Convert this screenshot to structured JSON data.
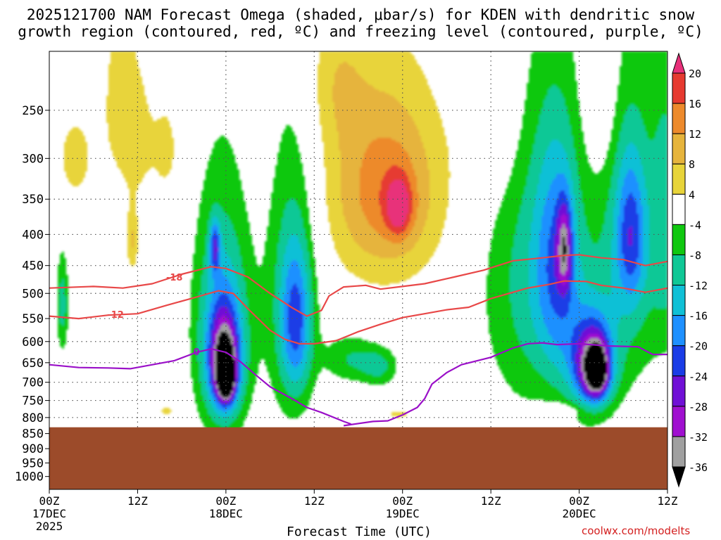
{
  "chart_data": {
    "type": "heatmap",
    "title_line1": "2025121700 NAM Forecast Omega (shaded, μbar/s) for KDEN with dendritic snow",
    "title_line2": "growth region (contoured, red, ºC) and freezing level (contoured, purple, ºC)",
    "xlabel": "Forecast Time (UTC)",
    "credit": "coolwx.com/modelts",
    "x_hours_range": [
      0,
      84
    ],
    "x_ticks": [
      {
        "hour": 0,
        "label": "00Z",
        "sub": "17DEC",
        "sub2": "2025"
      },
      {
        "hour": 12,
        "label": "12Z",
        "sub": "",
        "sub2": ""
      },
      {
        "hour": 24,
        "label": "00Z",
        "sub": "18DEC",
        "sub2": ""
      },
      {
        "hour": 36,
        "label": "12Z",
        "sub": "",
        "sub2": ""
      },
      {
        "hour": 48,
        "label": "00Z",
        "sub": "19DEC",
        "sub2": ""
      },
      {
        "hour": 60,
        "label": "12Z",
        "sub": "",
        "sub2": ""
      },
      {
        "hour": 72,
        "label": "00Z",
        "sub": "20DEC",
        "sub2": ""
      },
      {
        "hour": 84,
        "label": "12Z",
        "sub": "",
        "sub2": ""
      }
    ],
    "y_ticks_hpa": [
      250,
      300,
      350,
      400,
      450,
      500,
      550,
      600,
      650,
      700,
      750,
      800,
      850,
      900,
      950,
      1000
    ],
    "y_range_hpa": [
      200,
      1050
    ],
    "ground_pressure_hpa": 830,
    "colorbar": {
      "labels": [
        20,
        16,
        12,
        8,
        4,
        -4,
        -8,
        -12,
        -16,
        -20,
        -24,
        -28,
        -32,
        -36
      ],
      "colors": [
        "#e8307a",
        "#e63a30",
        "#ed8a2c",
        "#e6b43c",
        "#e8d43a",
        "#ffffff",
        "#10c810",
        "#10c896",
        "#10c0d6",
        "#1e90ff",
        "#1a3ce6",
        "#7010d6",
        "#a010d0",
        "#a0a0a0",
        "#000000"
      ]
    },
    "omega_cells": [
      {
        "t": 1.8,
        "p": 520,
        "v": -10,
        "rt": 0.8,
        "rp": 100
      },
      {
        "t": 3.5,
        "p": 300,
        "v": 5,
        "rt": 3.5,
        "rp": 70
      },
      {
        "t": 9.5,
        "p": 230,
        "v": 5,
        "rt": 2.5,
        "rp": 90
      },
      {
        "t": 12,
        "p": 280,
        "v": 5,
        "rt": 2.5,
        "rp": 80
      },
      {
        "t": 11.3,
        "p": 410,
        "v": 8,
        "rt": 0.8,
        "rp": 50
      },
      {
        "t": 16,
        "p": 290,
        "v": 5,
        "rt": 2.0,
        "rp": 60
      },
      {
        "t": 23.5,
        "p": 560,
        "v": -12,
        "rt": 4,
        "rp": 270
      },
      {
        "t": 23.7,
        "p": 630,
        "v": -16,
        "rt": 2.5,
        "rp": 150
      },
      {
        "t": 23.9,
        "p": 660,
        "v": -24,
        "rt": 1.6,
        "rp": 90
      },
      {
        "t": 24.0,
        "p": 690,
        "v": -32,
        "rt": 0.9,
        "rp": 45
      },
      {
        "t": 24.1,
        "p": 700,
        "v": -40,
        "rt": 0.5,
        "rp": 25
      },
      {
        "t": 22.5,
        "p": 420,
        "v": -16,
        "rt": 0.7,
        "rp": 40
      },
      {
        "t": 33,
        "p": 500,
        "v": -10,
        "rt": 3.5,
        "rp": 280
      },
      {
        "t": 33.5,
        "p": 560,
        "v": -14,
        "rt": 2.0,
        "rp": 150
      },
      {
        "t": 41,
        "p": 640,
        "v": -8,
        "rt": 3.5,
        "rp": 60
      },
      {
        "t": 45,
        "p": 660,
        "v": -8,
        "rt": 2.5,
        "rp": 50
      },
      {
        "t": 45,
        "p": 330,
        "v": 6,
        "rt": 9,
        "rp": 160
      },
      {
        "t": 46,
        "p": 340,
        "v": 9,
        "rt": 7,
        "rp": 110
      },
      {
        "t": 47.5,
        "p": 360,
        "v": 13,
        "rt": 1.8,
        "rp": 40
      },
      {
        "t": 47.5,
        "p": 790,
        "v": 5,
        "rt": 2.5,
        "rp": 20
      },
      {
        "t": 39,
        "p": 220,
        "v": 5,
        "rt": 4,
        "rp": 60
      },
      {
        "t": 60,
        "p": 250,
        "v": 5,
        "rt": 4,
        "rp": 90
      },
      {
        "t": 66,
        "p": 480,
        "v": -10,
        "rt": 7,
        "rp": 280
      },
      {
        "t": 69,
        "p": 440,
        "v": -13,
        "rt": 3,
        "rp": 200
      },
      {
        "t": 70,
        "p": 420,
        "v": -18,
        "rt": 1.0,
        "rp": 70
      },
      {
        "t": 73.5,
        "p": 640,
        "v": -14,
        "rt": 3.5,
        "rp": 140
      },
      {
        "t": 74,
        "p": 660,
        "v": -22,
        "rt": 2.3,
        "rp": 90
      },
      {
        "t": 74.5,
        "p": 670,
        "v": -28,
        "rt": 1.2,
        "rp": 50
      },
      {
        "t": 79,
        "p": 420,
        "v": -10,
        "rt": 5,
        "rp": 260
      },
      {
        "t": 79,
        "p": 400,
        "v": -14,
        "rt": 2,
        "rp": 110
      },
      {
        "t": 84,
        "p": 380,
        "v": -8,
        "rt": 2,
        "rp": 200
      },
      {
        "t": 75,
        "p": 230,
        "v": 5,
        "rt": 2.5,
        "rp": 90
      },
      {
        "t": 69,
        "p": 780,
        "v": 5,
        "rt": 4,
        "rp": 25
      },
      {
        "t": 59,
        "p": 780,
        "v": 5,
        "rt": 3,
        "rp": 20
      },
      {
        "t": 16,
        "p": 780,
        "v": 5,
        "rt": 1.5,
        "rp": 25
      }
    ],
    "contours": [
      {
        "name": "-18 red",
        "label": "-18",
        "color": "#e84848",
        "points": [
          [
            0,
            490
          ],
          [
            6,
            487
          ],
          [
            10,
            490
          ],
          [
            14,
            482
          ],
          [
            18,
            465
          ],
          [
            22,
            452
          ],
          [
            24,
            455
          ],
          [
            27,
            470
          ],
          [
            30,
            500
          ],
          [
            33,
            528
          ],
          [
            35,
            545
          ],
          [
            37,
            533
          ],
          [
            38,
            505
          ],
          [
            40,
            488
          ],
          [
            43,
            485
          ],
          [
            45,
            492
          ],
          [
            48,
            487
          ],
          [
            51,
            482
          ],
          [
            55,
            470
          ],
          [
            59,
            458
          ],
          [
            63,
            442
          ],
          [
            67,
            437
          ],
          [
            70,
            433
          ],
          [
            72,
            432
          ],
          [
            75,
            437
          ],
          [
            78,
            440
          ],
          [
            81,
            450
          ],
          [
            84,
            443
          ]
        ],
        "label_at": [
          17,
          470
        ]
      },
      {
        "name": "-12 red",
        "label": "-12",
        "color": "#e84848",
        "points": [
          [
            0,
            545
          ],
          [
            4,
            550
          ],
          [
            8,
            543
          ],
          [
            12,
            540
          ],
          [
            16,
            523
          ],
          [
            20,
            507
          ],
          [
            23,
            495
          ],
          [
            25,
            500
          ],
          [
            27,
            530
          ],
          [
            30,
            575
          ],
          [
            32,
            595
          ],
          [
            34,
            605
          ],
          [
            36,
            605
          ],
          [
            39,
            598
          ],
          [
            42,
            578
          ],
          [
            45,
            562
          ],
          [
            48,
            548
          ],
          [
            51,
            540
          ],
          [
            54,
            532
          ],
          [
            57,
            527
          ],
          [
            60,
            510
          ],
          [
            63,
            498
          ],
          [
            65,
            490
          ],
          [
            68,
            483
          ],
          [
            70,
            477
          ],
          [
            73,
            478
          ],
          [
            75,
            485
          ],
          [
            78,
            490
          ],
          [
            81,
            498
          ],
          [
            84,
            490
          ]
        ],
        "label_at": [
          9,
          541
        ]
      },
      {
        "name": "0 purple",
        "label": "0",
        "color": "#9a10c8",
        "points": [
          [
            0,
            655
          ],
          [
            4,
            662
          ],
          [
            8,
            663
          ],
          [
            11,
            665
          ],
          [
            14,
            655
          ],
          [
            17,
            645
          ],
          [
            20,
            625
          ],
          [
            22,
            617
          ],
          [
            24,
            625
          ],
          [
            26,
            648
          ],
          [
            28,
            680
          ],
          [
            30,
            712
          ],
          [
            33,
            745
          ],
          [
            35,
            770
          ],
          [
            37,
            785
          ],
          [
            40,
            812
          ],
          [
            41,
            820
          ]
        ],
        "label_at": [
          20,
          623
        ]
      },
      {
        "name": "0 purple b",
        "label": "",
        "color": "#9a10c8",
        "points": [
          [
            40,
            825
          ],
          [
            44,
            812
          ],
          [
            46,
            810
          ],
          [
            48,
            792
          ],
          [
            50,
            770
          ],
          [
            51,
            745
          ],
          [
            52,
            705
          ],
          [
            54,
            675
          ],
          [
            56,
            655
          ],
          [
            60,
            637
          ],
          [
            63,
            615
          ],
          [
            65,
            605
          ],
          [
            67,
            603
          ],
          [
            69,
            607
          ],
          [
            72,
            605
          ],
          [
            76,
            610
          ],
          [
            80,
            612
          ],
          [
            82,
            630
          ],
          [
            84,
            630
          ]
        ],
        "label_at": [
          70,
          605
        ]
      }
    ]
  }
}
